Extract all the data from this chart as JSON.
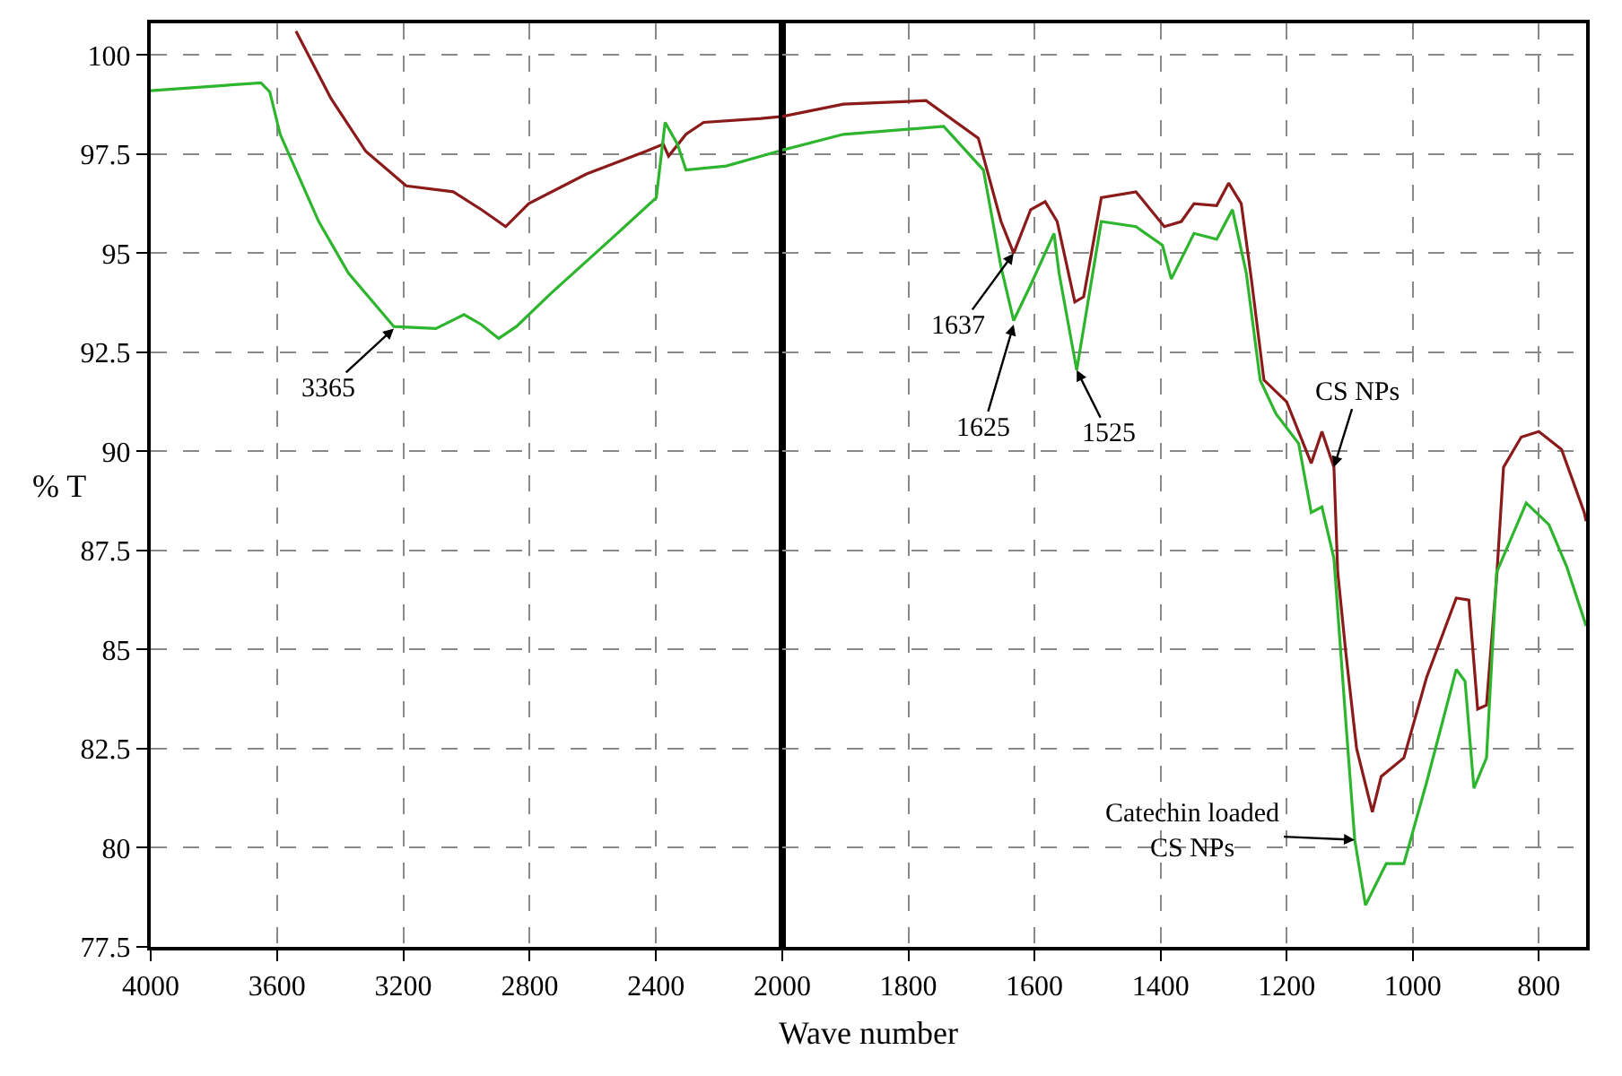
{
  "chart_data": [
    {
      "type": "line",
      "xlabel": "Wave number",
      "ylabel": "% T",
      "xlim": [
        4000,
        2000
      ],
      "xticks": [
        4000,
        3600,
        3200,
        2800,
        2400,
        2000
      ],
      "ylim": [
        77.5,
        100.8
      ],
      "yticks": [
        77.5,
        80,
        82.5,
        85,
        87.5,
        90,
        92.5,
        95,
        97.5,
        100
      ],
      "grid": true,
      "line_style": "solid",
      "marker": "none",
      "annotations": [
        {
          "text": "3365",
          "x": 3230,
          "y": 93.1
        }
      ],
      "series": [
        {
          "color": "#8b1a1a",
          "x": [
            3540,
            3429,
            3319,
            3191,
            3042,
            2953,
            2876,
            2803,
            2620,
            2432,
            2377,
            2360,
            2305,
            2249,
            2067,
            2000
          ],
          "values": [
            100.6,
            98.9,
            97.57,
            96.7,
            96.55,
            96.1,
            95.67,
            96.25,
            97.0,
            97.57,
            97.75,
            97.45,
            98.0,
            98.3,
            98.4,
            98.45
          ]
        },
        {
          "color": "#2db52d",
          "x": [
            4000,
            3651,
            3623,
            3590,
            3468,
            3374,
            3230,
            3097,
            3008,
            2953,
            2898,
            2842,
            2731,
            2543,
            2399,
            2371,
            2332,
            2305,
            2177,
            2000
          ],
          "values": [
            99.1,
            99.3,
            99.07,
            98.0,
            95.8,
            94.5,
            93.15,
            93.1,
            93.45,
            93.2,
            92.85,
            93.15,
            94.0,
            95.35,
            96.4,
            98.3,
            97.75,
            97.1,
            97.2,
            97.6
          ]
        }
      ]
    },
    {
      "type": "line",
      "xlim": [
        2000,
        725
      ],
      "xticks": [
        1800,
        1600,
        1400,
        1200,
        1000,
        800
      ],
      "ylim": [
        77.5,
        100.8
      ],
      "yticks": [
        77.5,
        80,
        82.5,
        85,
        87.5,
        90,
        92.5,
        95,
        97.5,
        100
      ],
      "grid": true,
      "tick_labels": "x",
      "line_style": "solid",
      "marker": "none",
      "annotations": [
        {
          "text": "1637",
          "x": 1633,
          "y": 95.0
        },
        {
          "text": "1625",
          "x": 1633,
          "y": 93.2
        },
        {
          "text": "1525",
          "x": 1533,
          "y": 92.05
        },
        {
          "text": "CS NPs",
          "x": 1125,
          "y": 89.6
        },
        {
          "text": "Catechin loaded\nCS NPs",
          "x": 1092,
          "y": 80.2
        }
      ],
      "series": [
        {
          "color": "#8b1a1a",
          "x": [
            2000,
            1903,
            1772,
            1689,
            1653,
            1633,
            1606,
            1583,
            1564,
            1536,
            1522,
            1494,
            1439,
            1394,
            1367,
            1347,
            1311,
            1292,
            1272,
            1256,
            1236,
            1200,
            1161,
            1144,
            1125,
            1119,
            1106,
            1089,
            1064,
            1050,
            1014,
            978,
            931,
            911,
            897,
            883,
            867,
            856,
            828,
            800,
            764,
            728,
            725
          ],
          "values": [
            98.45,
            98.76,
            98.85,
            97.9,
            95.8,
            95.0,
            96.1,
            96.3,
            95.8,
            93.77,
            93.9,
            96.4,
            96.55,
            95.67,
            95.8,
            96.25,
            96.2,
            96.77,
            96.25,
            94.35,
            91.8,
            91.25,
            89.7,
            90.5,
            89.6,
            86.95,
            84.9,
            82.5,
            80.9,
            81.8,
            82.27,
            84.3,
            86.3,
            86.25,
            83.5,
            83.6,
            86.8,
            89.6,
            90.36,
            90.5,
            90.05,
            88.46,
            88.24
          ]
        },
        {
          "color": "#2db52d",
          "x": [
            2000,
            1903,
            1744,
            1681,
            1653,
            1633,
            1606,
            1569,
            1561,
            1533,
            1494,
            1439,
            1397,
            1383,
            1347,
            1311,
            1286,
            1264,
            1242,
            1217,
            1181,
            1161,
            1144,
            1125,
            1106,
            1092,
            1075,
            1042,
            1014,
            978,
            931,
            917,
            903,
            883,
            867,
            820,
            784,
            756,
            725
          ],
          "values": [
            97.6,
            98.0,
            98.2,
            97.1,
            94.65,
            93.3,
            94.2,
            95.5,
            94.5,
            92.05,
            95.8,
            95.67,
            95.2,
            94.35,
            95.5,
            95.35,
            96.1,
            94.5,
            91.8,
            90.95,
            90.2,
            88.46,
            88.6,
            87.3,
            83.15,
            80.2,
            78.55,
            79.6,
            79.6,
            81.65,
            84.5,
            84.2,
            81.5,
            82.27,
            86.95,
            88.7,
            88.15,
            87.1,
            85.6
          ]
        }
      ]
    }
  ]
}
